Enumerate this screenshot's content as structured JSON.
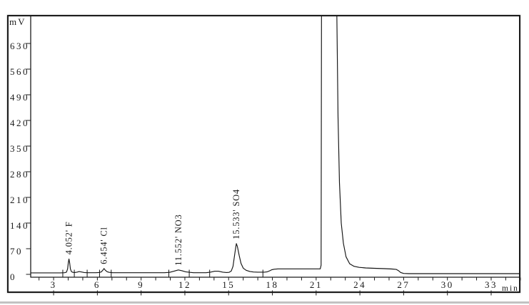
{
  "figure": {
    "background": "#ffffff",
    "frame_color": "#1b1b1b",
    "trace_color": "#141414"
  },
  "chart_data": {
    "type": "line",
    "kind": "ion-chromatography-chromatogram",
    "title": "",
    "ylabel": "mV",
    "xlabel": "min",
    "xlim": [
      1.43,
      35.03
    ],
    "ylim": [
      0,
      706
    ],
    "x_ticks": [
      3,
      6,
      9,
      12,
      15,
      18,
      21,
      24,
      27,
      30,
      33
    ],
    "x_minor_tick_step_min": 1,
    "y_ticks": [
      0,
      70,
      140,
      210,
      280,
      350,
      420,
      490,
      560,
      630
    ],
    "grid": "off",
    "legend": "none",
    "peaks": [
      {
        "rt_min": 4.052,
        "ion": "F",
        "label": "4.052' F",
        "height_mV": 38
      },
      {
        "rt_min": 6.454,
        "ion": "Cl",
        "label": "6.454' Cl",
        "height_mV": 12
      },
      {
        "rt_min": 11.552,
        "ion": "NO3",
        "label": "11.552' NO3",
        "height_mV": 8
      },
      {
        "rt_min": 15.533,
        "ion": "SO4",
        "label": "15.533' SO4",
        "height_mV": 80
      },
      {
        "rt_min": 21.9,
        "ion": "",
        "label": "",
        "height_mV": "off-scale (clipped above 706 mV)"
      }
    ],
    "baseline_mV": 4,
    "baseline_step_up": {
      "at_min": 18.0,
      "to_mV": 15
    },
    "baseline_step_down": {
      "at_min": 26.8,
      "to_mV": 2
    },
    "integration_tick_times_min": [
      3.63,
      4.42,
      5.3,
      6.15,
      6.95,
      10.9,
      12.3,
      13.7,
      17.35
    ],
    "trace": [
      [
        1.43,
        4
      ],
      [
        3.45,
        4
      ],
      [
        3.75,
        4.5
      ],
      [
        3.88,
        6
      ],
      [
        3.96,
        15
      ],
      [
        4.01,
        32
      ],
      [
        4.052,
        42
      ],
      [
        4.1,
        31
      ],
      [
        4.15,
        15
      ],
      [
        4.22,
        7.5
      ],
      [
        4.32,
        5.5
      ],
      [
        4.45,
        5
      ],
      [
        4.6,
        6
      ],
      [
        4.75,
        7.5
      ],
      [
        4.92,
        6.5
      ],
      [
        5.1,
        5
      ],
      [
        5.3,
        4.5
      ],
      [
        5.9,
        4.5
      ],
      [
        6.1,
        5
      ],
      [
        6.26,
        6.5
      ],
      [
        6.38,
        11.5
      ],
      [
        6.454,
        16
      ],
      [
        6.55,
        11
      ],
      [
        6.68,
        7
      ],
      [
        6.82,
        5.5
      ],
      [
        7.05,
        4.5
      ],
      [
        10.6,
        4.5
      ],
      [
        10.95,
        5.5
      ],
      [
        11.25,
        8.5
      ],
      [
        11.552,
        12
      ],
      [
        11.8,
        10
      ],
      [
        12.05,
        7
      ],
      [
        12.35,
        5.5
      ],
      [
        12.6,
        4.5
      ],
      [
        13.45,
        4.5
      ],
      [
        13.75,
        6
      ],
      [
        14.05,
        8.5
      ],
      [
        14.3,
        8.5
      ],
      [
        14.6,
        6
      ],
      [
        14.85,
        5
      ],
      [
        15.02,
        5.5
      ],
      [
        15.18,
        9
      ],
      [
        15.3,
        22
      ],
      [
        15.42,
        55
      ],
      [
        15.49,
        75
      ],
      [
        15.533,
        84
      ],
      [
        15.6,
        76
      ],
      [
        15.72,
        52
      ],
      [
        15.85,
        30
      ],
      [
        16.0,
        17
      ],
      [
        16.2,
        11
      ],
      [
        16.45,
        8
      ],
      [
        16.7,
        6.5
      ],
      [
        17.0,
        6
      ],
      [
        17.45,
        6
      ],
      [
        17.65,
        7
      ],
      [
        17.8,
        9.5
      ],
      [
        17.95,
        12.5
      ],
      [
        18.12,
        14
      ],
      [
        18.4,
        15
      ],
      [
        21.28,
        15
      ],
      [
        21.34,
        25
      ],
      [
        21.37,
        780
      ],
      [
        22.4,
        780
      ],
      [
        22.5,
        430
      ],
      [
        22.6,
        250
      ],
      [
        22.72,
        140
      ],
      [
        22.87,
        85
      ],
      [
        23.05,
        48
      ],
      [
        23.3,
        29
      ],
      [
        23.6,
        22
      ],
      [
        23.95,
        19
      ],
      [
        24.4,
        17.5
      ],
      [
        25.0,
        16.5
      ],
      [
        25.7,
        15.5
      ],
      [
        26.2,
        14.5
      ],
      [
        26.5,
        13.5
      ],
      [
        26.65,
        10
      ],
      [
        26.8,
        5
      ],
      [
        27.0,
        2.5
      ],
      [
        27.35,
        2
      ],
      [
        35.03,
        2
      ]
    ]
  }
}
